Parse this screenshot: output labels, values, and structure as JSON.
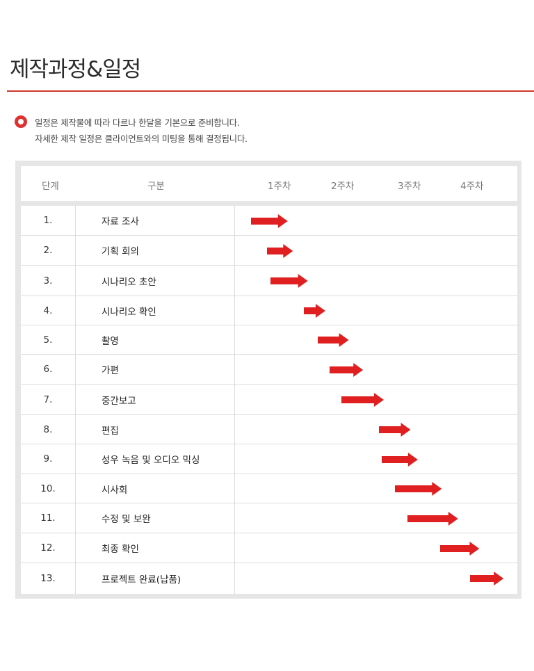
{
  "title": "제작과정&일정",
  "notice": {
    "icon": "radio-dot-icon",
    "line1": "일정은 제작물에 따라 다르나 한달을 기본으로 준비합니다.",
    "line2": "자세한 제작 일정은 클라이언트와의 미팅을 통해 결정됩니다."
  },
  "table": {
    "headers": {
      "step": "단계",
      "category": "구분",
      "weeks": [
        "1주차",
        "2주차",
        "3주차",
        "4주차"
      ]
    },
    "rows": [
      {
        "step": "1.",
        "name": "자료 조사",
        "start_week": 0.0,
        "end_week": 0.58
      },
      {
        "step": "2.",
        "name": "기획 회의",
        "start_week": 0.25,
        "end_week": 0.66
      },
      {
        "step": "3.",
        "name": "시나리오 초안",
        "start_week": 0.31,
        "end_week": 0.9
      },
      {
        "step": "4.",
        "name": "시나리오 확인",
        "start_week": 0.84,
        "end_week": 1.18
      },
      {
        "step": "5.",
        "name": "촬영",
        "start_week": 1.06,
        "end_week": 1.55
      },
      {
        "step": "6.",
        "name": "가편",
        "start_week": 1.24,
        "end_week": 1.77
      },
      {
        "step": "7.",
        "name": "중간보고",
        "start_week": 1.43,
        "end_week": 2.1
      },
      {
        "step": "8.",
        "name": "편집",
        "start_week": 2.02,
        "end_week": 2.52
      },
      {
        "step": "9.",
        "name": "성우 녹음 및 오디오 믹싱",
        "start_week": 2.07,
        "end_week": 2.64
      },
      {
        "step": "10.",
        "name": "시사회",
        "start_week": 2.27,
        "end_week": 3.01
      },
      {
        "step": "11.",
        "name": "수정 및 보완",
        "start_week": 2.47,
        "end_week": 3.27
      },
      {
        "step": "12.",
        "name": "최종 확인",
        "start_week": 2.99,
        "end_week": 3.61
      },
      {
        "step": "13.",
        "name": "프로젝트 완료(납품)",
        "start_week": 3.46,
        "end_week": 3.99
      }
    ]
  },
  "colors": {
    "accent": "#d0392b",
    "arrow": "#e02020",
    "frame": "#e6e6e6",
    "grid": "#dcdcdc"
  }
}
